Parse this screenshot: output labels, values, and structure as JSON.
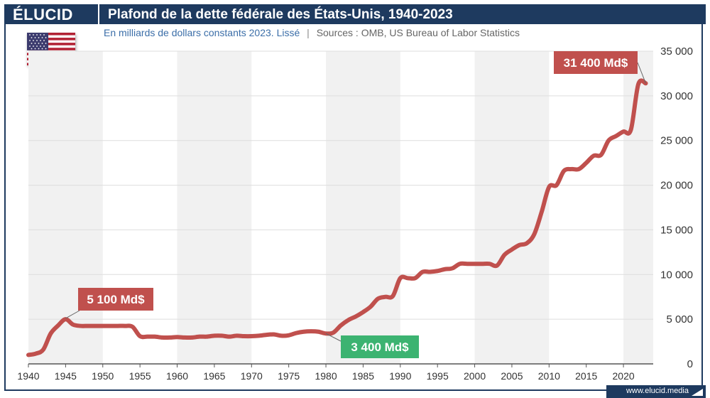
{
  "header": {
    "logo": "ÉLUCID",
    "title": "Plafond de la dette fédérale des États-Unis, 1940-2023"
  },
  "subtitle": "En milliards de dollars constants 2023. Lissé",
  "sources": "Sources : OMB, US Bureau of Labor Statistics",
  "watermark": "www.elucid.media",
  "flag_icon": "us-flag-icon",
  "colors": {
    "header": "#1e3a5f",
    "line": "#c0504d",
    "callout_red": "#c0504d",
    "callout_green": "#3cb371",
    "band": "#f1f1f1"
  },
  "chart_data": {
    "type": "line",
    "title": "Plafond de la dette fédérale des États-Unis, 1940-2023",
    "xlabel": "",
    "ylabel": "",
    "xlim": [
      1940,
      2024
    ],
    "ylim": [
      0,
      35000
    ],
    "grid": true,
    "y_axis_side": "right",
    "x_ticks": [
      "1940",
      "1945",
      "1950",
      "1955",
      "1960",
      "1965",
      "1970",
      "1975",
      "1980",
      "1985",
      "1990",
      "1995",
      "2000",
      "2005",
      "2010",
      "2015",
      "2020"
    ],
    "y_ticks": [
      "0",
      "5 000",
      "10 000",
      "15 000",
      "20 000",
      "25 000",
      "30 000",
      "35 000"
    ],
    "series": [
      {
        "x": [
          1940,
          1941,
          1942,
          1943,
          1944,
          1945,
          1946,
          1947,
          1948,
          1949,
          1950,
          1951,
          1952,
          1953,
          1954,
          1955,
          1956,
          1957,
          1958,
          1959,
          1960,
          1961,
          1962,
          1963,
          1964,
          1965,
          1966,
          1967,
          1968,
          1969,
          1970,
          1971,
          1972,
          1973,
          1974,
          1975,
          1976,
          1977,
          1978,
          1979,
          1980,
          1981,
          1982,
          1983,
          1984,
          1985,
          1986,
          1987,
          1988,
          1989,
          1990,
          1991,
          1992,
          1993,
          1994,
          1995,
          1996,
          1997,
          1998,
          1999,
          2000,
          2001,
          2002,
          2003,
          2004,
          2005,
          2006,
          2007,
          2008,
          2009,
          2010,
          2011,
          2012,
          2013,
          2014,
          2015,
          2016,
          2017,
          2018,
          2019,
          2020,
          2021,
          2022,
          2023
        ],
        "y": [
          1000,
          1150,
          1600,
          3400,
          4300,
          5000,
          4400,
          4250,
          4250,
          4250,
          4250,
          4250,
          4250,
          4250,
          4150,
          3100,
          3050,
          3050,
          2950,
          2950,
          3000,
          2950,
          2950,
          3050,
          3050,
          3150,
          3150,
          3050,
          3150,
          3100,
          3100,
          3150,
          3250,
          3300,
          3150,
          3200,
          3450,
          3600,
          3650,
          3600,
          3400,
          3500,
          4300,
          4900,
          5300,
          5800,
          6400,
          7300,
          7500,
          7600,
          9600,
          9600,
          9600,
          10300,
          10300,
          10400,
          10600,
          10700,
          11200,
          11200,
          11200,
          11200,
          11200,
          11000,
          12200,
          12800,
          13300,
          13500,
          14500,
          17000,
          19800,
          20000,
          21600,
          21800,
          21800,
          22500,
          23300,
          23400,
          25000,
          25500,
          26000,
          26200,
          31300,
          31400
        ]
      }
    ],
    "annotations": [
      {
        "label": "5 100 Md$",
        "x": 1945,
        "y": 5100,
        "color": "red"
      },
      {
        "label": "3 400 Md$",
        "x": 1980,
        "y": 3400,
        "color": "green"
      },
      {
        "label": "31 400 Md$",
        "x": 2023,
        "y": 31400,
        "color": "red"
      }
    ]
  }
}
